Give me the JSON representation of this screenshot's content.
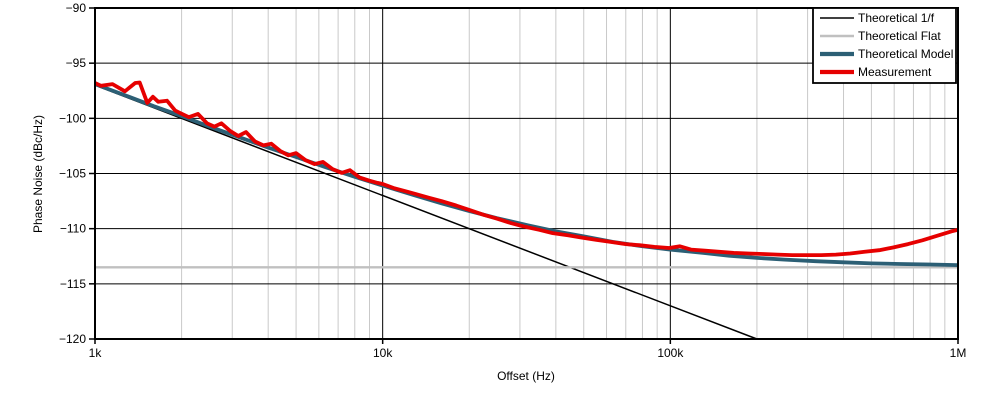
{
  "chart_data": {
    "type": "line",
    "title": "",
    "xlabel": "Offset (Hz)",
    "ylabel": "Phase Noise (dBc/Hz)",
    "x_scale": "log",
    "xlim": [
      1000,
      1000000
    ],
    "ylim": [
      -120,
      -90
    ],
    "x_ticks": [
      {
        "value": 1000,
        "label": "1k"
      },
      {
        "value": 10000,
        "label": "10k"
      },
      {
        "value": 100000,
        "label": "100k"
      },
      {
        "value": 1000000,
        "label": "1M"
      }
    ],
    "y_ticks": [
      {
        "value": -90,
        "label": "−90"
      },
      {
        "value": -95,
        "label": "−95"
      },
      {
        "value": -100,
        "label": "−100"
      },
      {
        "value": -105,
        "label": "−105"
      },
      {
        "value": -110,
        "label": "−110"
      },
      {
        "value": -115,
        "label": "−115"
      },
      {
        "value": -120,
        "label": "−120"
      }
    ],
    "grid": {
      "major_on": true,
      "minor_x_on": true,
      "major_color": "#000000",
      "minor_color": "#c9c9c9"
    },
    "legend": {
      "position": "top-right",
      "border_color": "#000000",
      "background": "#ffffff"
    },
    "series": [
      {
        "name": "Theoretical 1/f",
        "color": "#000000",
        "width": 1.5,
        "legend_sample_width": 1.5,
        "points": [
          [
            1000,
            -97.0
          ],
          [
            200000,
            -120.0
          ]
        ]
      },
      {
        "name": "Theoretical Flat",
        "color": "#c0c0c0",
        "width": 2.4,
        "legend_sample_width": 2.4,
        "points": [
          [
            1000,
            -113.5
          ],
          [
            1000000,
            -113.5
          ]
        ]
      },
      {
        "name": "Theoretical Model",
        "color": "#2c5f75",
        "width": 3.8,
        "legend_sample_width": 4.2,
        "points": [
          [
            1000,
            -96.9
          ],
          [
            1300,
            -98.0
          ],
          [
            1600,
            -98.9
          ],
          [
            2000,
            -99.8
          ],
          [
            2500,
            -100.75
          ],
          [
            3200,
            -101.75
          ],
          [
            4000,
            -102.65
          ],
          [
            5000,
            -103.5
          ],
          [
            6300,
            -104.4
          ],
          [
            8000,
            -105.3
          ],
          [
            10000,
            -106.1
          ],
          [
            13000,
            -107.0
          ],
          [
            16000,
            -107.7
          ],
          [
            20000,
            -108.4
          ],
          [
            25000,
            -109.05
          ],
          [
            32000,
            -109.7
          ],
          [
            40000,
            -110.25
          ],
          [
            50000,
            -110.7
          ],
          [
            63000,
            -111.2
          ],
          [
            80000,
            -111.6
          ],
          [
            100000,
            -111.9
          ],
          [
            130000,
            -112.2
          ],
          [
            160000,
            -112.45
          ],
          [
            200000,
            -112.65
          ],
          [
            250000,
            -112.8
          ],
          [
            320000,
            -112.95
          ],
          [
            400000,
            -113.05
          ],
          [
            500000,
            -113.15
          ],
          [
            630000,
            -113.2
          ],
          [
            800000,
            -113.25
          ],
          [
            1000000,
            -113.3
          ]
        ]
      },
      {
        "name": "Measurement",
        "color": "#e60000",
        "width": 3.8,
        "legend_sample_width": 4.2,
        "points": [
          [
            1000,
            -96.8
          ],
          [
            1050,
            -97.05
          ],
          [
            1150,
            -96.9
          ],
          [
            1270,
            -97.55
          ],
          [
            1380,
            -96.8
          ],
          [
            1430,
            -96.75
          ],
          [
            1520,
            -98.6
          ],
          [
            1590,
            -98.05
          ],
          [
            1660,
            -98.5
          ],
          [
            1780,
            -98.4
          ],
          [
            1900,
            -99.3
          ],
          [
            1970,
            -99.5
          ],
          [
            2120,
            -99.9
          ],
          [
            2280,
            -99.6
          ],
          [
            2450,
            -100.45
          ],
          [
            2600,
            -100.75
          ],
          [
            2750,
            -100.45
          ],
          [
            2950,
            -101.15
          ],
          [
            3150,
            -101.6
          ],
          [
            3350,
            -101.25
          ],
          [
            3600,
            -102.1
          ],
          [
            3850,
            -102.45
          ],
          [
            4100,
            -102.3
          ],
          [
            4400,
            -102.95
          ],
          [
            4700,
            -103.35
          ],
          [
            5000,
            -103.15
          ],
          [
            5400,
            -103.8
          ],
          [
            5800,
            -104.15
          ],
          [
            6200,
            -103.95
          ],
          [
            6700,
            -104.6
          ],
          [
            7200,
            -104.95
          ],
          [
            7700,
            -104.7
          ],
          [
            8300,
            -105.35
          ],
          [
            9000,
            -105.65
          ],
          [
            9600,
            -105.85
          ],
          [
            10000,
            -105.95
          ],
          [
            11000,
            -106.35
          ],
          [
            12000,
            -106.6
          ],
          [
            13000,
            -106.85
          ],
          [
            14500,
            -107.2
          ],
          [
            16000,
            -107.5
          ],
          [
            18000,
            -107.9
          ],
          [
            20000,
            -108.3
          ],
          [
            22500,
            -108.75
          ],
          [
            25000,
            -109.1
          ],
          [
            28000,
            -109.5
          ],
          [
            31000,
            -109.8
          ],
          [
            35000,
            -110.1
          ],
          [
            39000,
            -110.4
          ],
          [
            44000,
            -110.6
          ],
          [
            49000,
            -110.8
          ],
          [
            55000,
            -111.0
          ],
          [
            62000,
            -111.2
          ],
          [
            70000,
            -111.4
          ],
          [
            78000,
            -111.5
          ],
          [
            88000,
            -111.65
          ],
          [
            99000,
            -111.75
          ],
          [
            108000,
            -111.6
          ],
          [
            118000,
            -111.9
          ],
          [
            132000,
            -112.0
          ],
          [
            148000,
            -112.1
          ],
          [
            166000,
            -112.2
          ],
          [
            187000,
            -112.25
          ],
          [
            210000,
            -112.3
          ],
          [
            236000,
            -112.35
          ],
          [
            265000,
            -112.4
          ],
          [
            298000,
            -112.4
          ],
          [
            335000,
            -112.4
          ],
          [
            376000,
            -112.35
          ],
          [
            422000,
            -112.25
          ],
          [
            474000,
            -112.1
          ],
          [
            532000,
            -111.95
          ],
          [
            597000,
            -111.7
          ],
          [
            670000,
            -111.4
          ],
          [
            752000,
            -111.05
          ],
          [
            845000,
            -110.65
          ],
          [
            948000,
            -110.25
          ],
          [
            1000000,
            -110.1
          ]
        ]
      }
    ]
  }
}
